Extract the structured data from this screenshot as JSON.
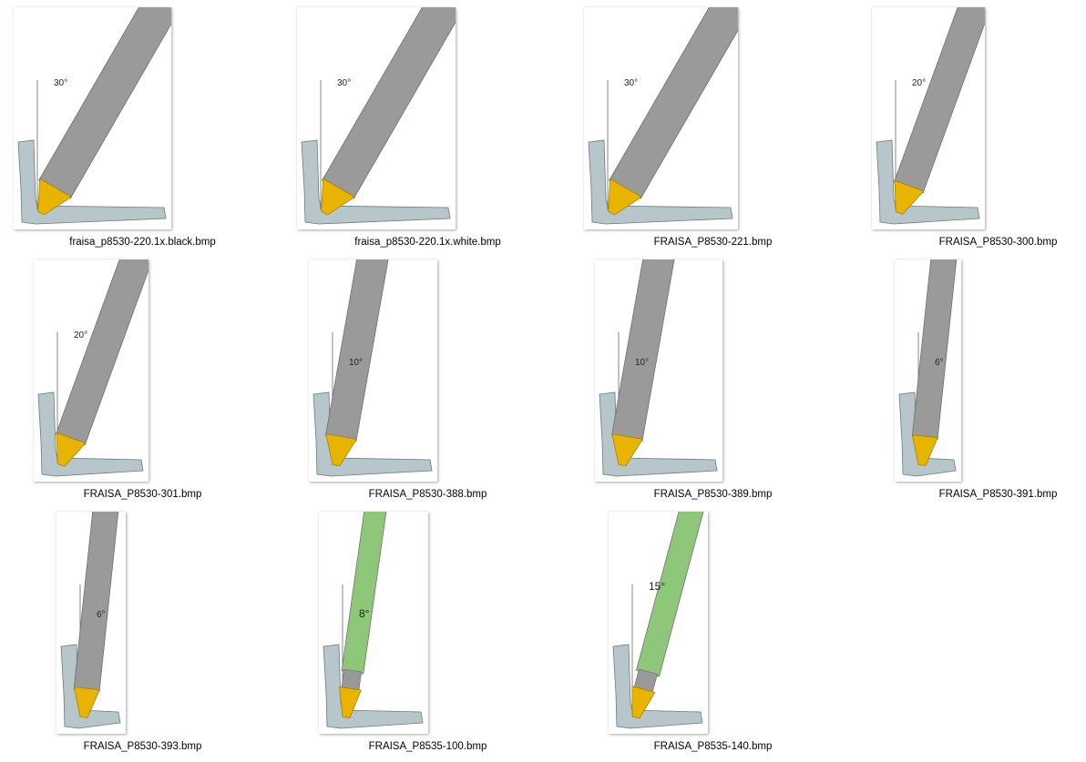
{
  "items": [
    {
      "name": "fraisa_p8530-220.1x.black.bmp",
      "angle": "30°"
    },
    {
      "name": "fraisa_p8530-220.1x.white.bmp",
      "angle": "30°"
    },
    {
      "name": "FRAISA_P8530-221.bmp",
      "angle": "30°"
    },
    {
      "name": "FRAISA_P8530-300.bmp",
      "angle": "20°"
    },
    {
      "name": "FRAISA_P8530-301.bmp",
      "angle": "20°"
    },
    {
      "name": "FRAISA_P8530-388.bmp",
      "angle": "10°"
    },
    {
      "name": "FRAISA_P8530-389.bmp",
      "angle": "10°"
    },
    {
      "name": "FRAISA_P8530-391.bmp",
      "angle": "6°"
    },
    {
      "name": "FRAISA_P8530-393.bmp",
      "angle": "6°"
    },
    {
      "name": "FRAISA_P8535-100.bmp",
      "angle": "8°"
    },
    {
      "name": "FRAISA_P8535-140.bmp",
      "angle": "15°"
    }
  ]
}
